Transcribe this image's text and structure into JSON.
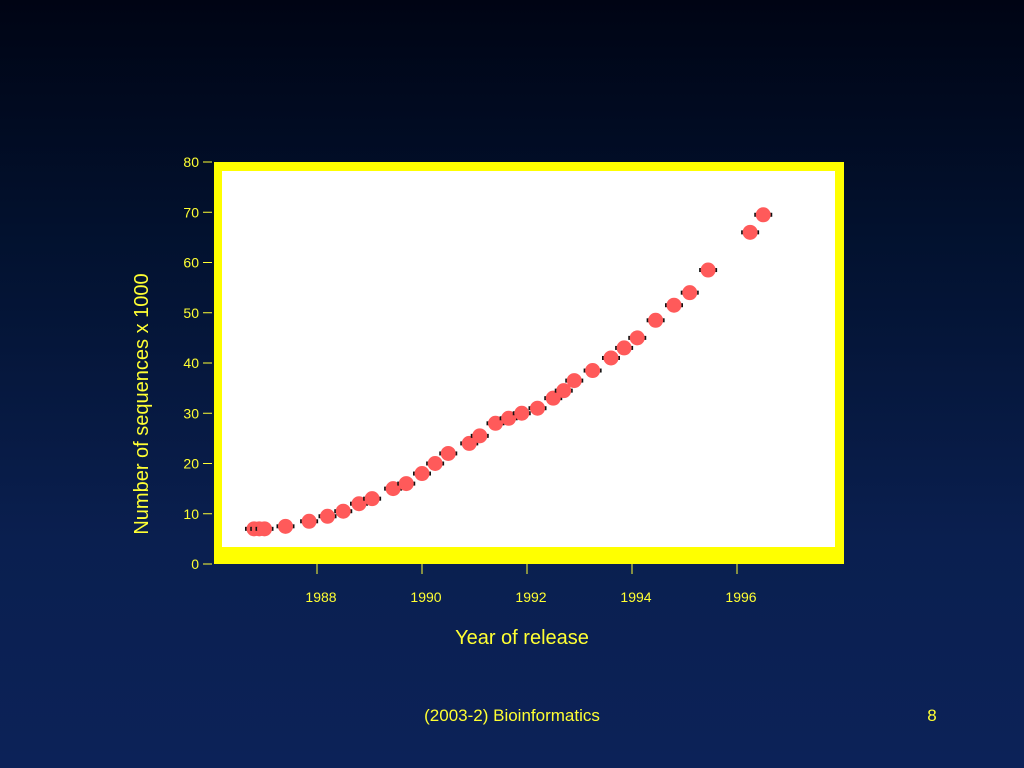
{
  "footer": {
    "title": "(2003-2) Bioinformatics",
    "page_number": "8"
  },
  "colors": {
    "background": "#0a1f4f",
    "plot_frame": "#ffff00",
    "plot_area": "#ffffff",
    "text": "#ffff33",
    "marker": "#ff5a5a"
  },
  "chart_data": {
    "type": "scatter",
    "xlabel": "Year of release",
    "ylabel": "Number of sequences x 1000",
    "xlim": [
      1986.0,
      1998.0
    ],
    "ylim": [
      0,
      80
    ],
    "x_ticks": [
      1988,
      1990,
      1992,
      1994,
      1996
    ],
    "y_ticks": [
      0,
      10,
      20,
      30,
      40,
      50,
      60,
      70,
      80
    ],
    "grid": false,
    "legend": "none",
    "series": [
      {
        "points": [
          [
            1986.8,
            7
          ],
          [
            1986.9,
            7
          ],
          [
            1987.0,
            7
          ],
          [
            1987.4,
            7.5
          ],
          [
            1987.85,
            8.5
          ],
          [
            1988.2,
            9.5
          ],
          [
            1988.5,
            10.5
          ],
          [
            1988.8,
            12
          ],
          [
            1989.05,
            13
          ],
          [
            1989.45,
            15
          ],
          [
            1989.7,
            16
          ],
          [
            1990.0,
            18
          ],
          [
            1990.25,
            20
          ],
          [
            1990.5,
            22
          ],
          [
            1990.9,
            24
          ],
          [
            1991.1,
            25.5
          ],
          [
            1991.4,
            28
          ],
          [
            1991.65,
            29
          ],
          [
            1991.9,
            30
          ],
          [
            1992.2,
            31
          ],
          [
            1992.5,
            33
          ],
          [
            1992.7,
            34.5
          ],
          [
            1992.9,
            36.5
          ],
          [
            1993.25,
            38.5
          ],
          [
            1993.6,
            41
          ],
          [
            1993.85,
            43
          ],
          [
            1994.1,
            45
          ],
          [
            1994.45,
            48.5
          ],
          [
            1994.8,
            51.5
          ],
          [
            1995.1,
            54
          ],
          [
            1995.45,
            58.5
          ],
          [
            1996.25,
            66
          ],
          [
            1996.5,
            69.5
          ]
        ]
      }
    ]
  }
}
